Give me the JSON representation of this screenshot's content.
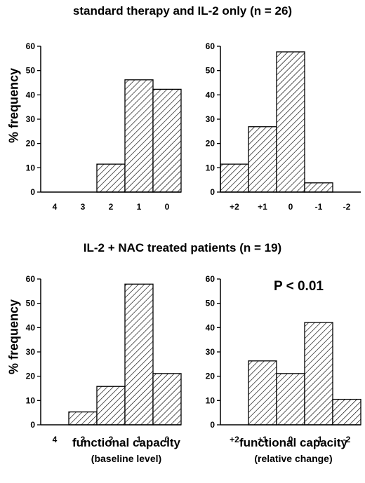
{
  "figure": {
    "top_title": "standard therapy and IL-2 only (n = 26)",
    "bottom_title": "IL-2 + NAC treated patients (n = 19)",
    "ylabel": "% frequency",
    "xlabel_left": "functional capacity",
    "xsub_left": "(baseline level)",
    "xlabel_right": "functional capacity",
    "xsub_right": "(relative change)",
    "pvalue": "P < 0.01"
  },
  "chart_data": [
    {
      "type": "bar",
      "group": "standard therapy and IL-2 only (n = 26)",
      "categories": [
        "4",
        "3",
        "2",
        "1",
        "0"
      ],
      "values": [
        0,
        0,
        11.5,
        46.2,
        42.3
      ],
      "ylim": [
        0,
        60
      ],
      "yticks": [
        "0",
        "10",
        "20",
        "30",
        "40",
        "50",
        "60"
      ]
    },
    {
      "type": "bar",
      "group": "standard therapy and IL-2 only (n = 26)",
      "categories": [
        "+2",
        "+1",
        "0",
        "-1",
        "-2"
      ],
      "values": [
        11.5,
        26.9,
        57.7,
        3.8,
        0
      ],
      "ylim": [
        0,
        60
      ],
      "yticks": [
        "0",
        "10",
        "20",
        "30",
        "40",
        "50",
        "60"
      ]
    },
    {
      "type": "bar",
      "group": "IL-2 + NAC treated patients (n = 19)",
      "categories": [
        "4",
        "3",
        "2",
        "1",
        "0"
      ],
      "values": [
        0,
        5.3,
        15.8,
        57.9,
        21.1
      ],
      "ylim": [
        0,
        60
      ],
      "yticks": [
        "0",
        "10",
        "20",
        "30",
        "40",
        "50",
        "60"
      ]
    },
    {
      "type": "bar",
      "group": "IL-2 + NAC treated patients (n = 19)",
      "categories": [
        "+2",
        "+1",
        "0",
        "-1",
        "-2"
      ],
      "values": [
        0,
        26.3,
        21.1,
        42.1,
        10.5
      ],
      "ylim": [
        0,
        60
      ],
      "yticks": [
        "0",
        "10",
        "20",
        "30",
        "40",
        "50",
        "60"
      ]
    }
  ]
}
